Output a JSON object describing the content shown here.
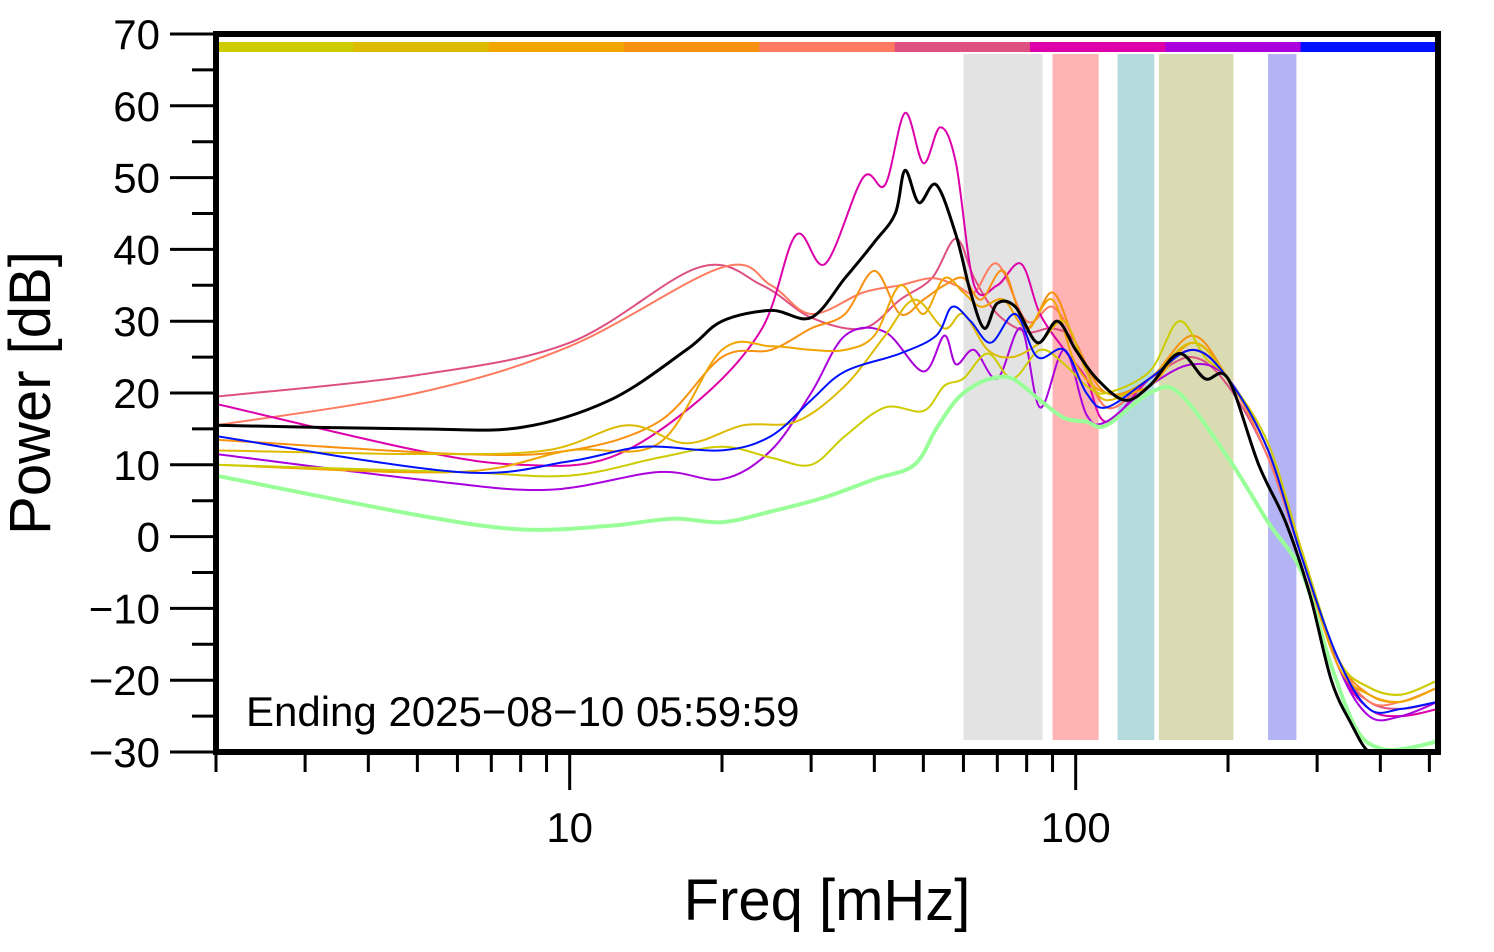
{
  "chart_data": {
    "type": "line",
    "xscale": "log",
    "xlim": [
      2,
      520
    ],
    "ylim": [
      -30,
      70
    ],
    "xlabel": "Freq [mHz]",
    "ylabel": "Power [dB]",
    "annotation": "Ending 2025−08−10 05:59:59",
    "x_ticks": [
      {
        "value": 10,
        "label": "10"
      },
      {
        "value": 100,
        "label": "100"
      }
    ],
    "y_ticks": [
      {
        "value": 70,
        "label": "70"
      },
      {
        "value": 60,
        "label": "60"
      },
      {
        "value": 50,
        "label": "50"
      },
      {
        "value": 40,
        "label": "40"
      },
      {
        "value": 30,
        "label": "30"
      },
      {
        "value": 20,
        "label": "20"
      },
      {
        "value": 10,
        "label": "10"
      },
      {
        "value": 0,
        "label": "0"
      },
      {
        "value": -10,
        "label": "−10"
      },
      {
        "value": -20,
        "label": "−20"
      },
      {
        "value": -30,
        "label": "−30"
      }
    ],
    "color_bar": [
      "#cccc00",
      "#ddbb00",
      "#f0a500",
      "#f89010",
      "#ff7a60",
      "#dd5080",
      "#dd00aa",
      "#aa00dd",
      "#0011ff"
    ],
    "bands": [
      {
        "x0": 60,
        "x1": 86,
        "color": "#e3e3e3"
      },
      {
        "x0": 90,
        "x1": 111,
        "color": "#ffb3b3"
      },
      {
        "x0": 121,
        "x1": 143,
        "color": "#b3dbdd"
      },
      {
        "x0": 146,
        "x1": 205,
        "color": "#dbdbb3"
      },
      {
        "x0": 240,
        "x1": 273,
        "color": "#b3b3f5"
      }
    ],
    "series": [
      {
        "color": "#dd5080",
        "width": 2,
        "x": [
          2,
          5,
          10,
          18,
          24,
          30,
          38,
          45,
          52,
          58,
          63,
          70,
          80,
          90,
          100,
          115,
          140,
          170,
          200,
          240,
          280,
          330,
          380,
          440,
          520
        ],
        "y": [
          19.5,
          22.5,
          27,
          37.5,
          35,
          30.5,
          29,
          33,
          36,
          41.5,
          36,
          31,
          28.5,
          29,
          27,
          18,
          22,
          25,
          21,
          11,
          -3,
          -18,
          -23,
          -24,
          -23
        ]
      },
      {
        "color": "#ff7a60",
        "width": 2,
        "x": [
          2,
          5,
          10,
          20,
          25,
          30,
          38,
          45,
          52,
          58,
          63,
          70,
          80,
          90,
          100,
          115,
          140,
          170,
          200,
          240,
          280,
          330,
          380,
          440,
          520
        ],
        "y": [
          15.5,
          20,
          26.5,
          37.5,
          35,
          31,
          34,
          35,
          36,
          35,
          34,
          38,
          30,
          32,
          27,
          18,
          22,
          26,
          22,
          11,
          -3,
          -17,
          -23,
          -23,
          -21
        ]
      },
      {
        "color": "#dd00aa",
        "width": 2,
        "x": [
          2,
          5,
          8,
          12,
          18,
          24,
          28,
          32,
          38,
          42,
          46,
          50,
          54,
          58,
          63,
          70,
          78,
          85,
          95,
          105,
          115,
          140,
          170,
          200,
          240,
          280,
          330,
          380,
          440,
          520
        ],
        "y": [
          18.5,
          12,
          10,
          11,
          19,
          29,
          42,
          38,
          50,
          49,
          59,
          52,
          57,
          52,
          35,
          35,
          38,
          31,
          26,
          22,
          16,
          22,
          26,
          22,
          12,
          -3,
          -18,
          -24,
          -25,
          -24
        ]
      },
      {
        "color": "#aa00dd",
        "width": 2,
        "x": [
          2,
          5,
          9,
          15,
          20,
          25,
          30,
          35,
          42,
          50,
          55,
          58,
          63,
          70,
          78,
          85,
          95,
          105,
          115,
          140,
          170,
          200,
          240,
          280,
          330,
          380,
          440,
          520
        ],
        "y": [
          11.5,
          8,
          6.5,
          9,
          8,
          12,
          20,
          28,
          28.5,
          23,
          28,
          24,
          26,
          22,
          29,
          18,
          26,
          17,
          16,
          21,
          24,
          22,
          12,
          -3,
          -18,
          -25,
          -25,
          -23
        ]
      },
      {
        "color": "#f89010",
        "width": 2,
        "x": [
          2,
          6,
          10,
          15,
          20,
          25,
          30,
          35,
          40,
          45,
          50,
          55,
          60,
          65,
          72,
          80,
          90,
          100,
          115,
          140,
          170,
          200,
          240,
          280,
          330,
          380,
          440,
          520
        ],
        "y": [
          13.5,
          11.5,
          12,
          16,
          25,
          26,
          29,
          31,
          37,
          31,
          33,
          35,
          36,
          33,
          37,
          29,
          34,
          27,
          20,
          22,
          28,
          22,
          12,
          -3,
          -17,
          -22,
          -23,
          -21
        ]
      },
      {
        "color": "#f0a500",
        "width": 2,
        "x": [
          2,
          6,
          10,
          15,
          20,
          25,
          30,
          35,
          40,
          45,
          50,
          55,
          60,
          65,
          72,
          80,
          90,
          100,
          115,
          140,
          170,
          200,
          240,
          280,
          330,
          380,
          440,
          520
        ],
        "y": [
          10,
          9,
          12,
          13,
          26,
          26.5,
          26,
          26,
          28,
          35,
          31,
          36,
          34,
          32,
          33,
          29,
          33,
          24,
          20,
          21,
          27,
          22,
          12,
          -3,
          -18,
          -22,
          -23,
          -21
        ]
      },
      {
        "color": "#ddbb00",
        "width": 2,
        "x": [
          2,
          5,
          9,
          13,
          17,
          22,
          28,
          35,
          42,
          48,
          55,
          60,
          67,
          75,
          85,
          95,
          105,
          115,
          140,
          170,
          200,
          240,
          280,
          330,
          380,
          440,
          520
        ],
        "y": [
          12,
          11.5,
          12,
          15.5,
          13,
          15.5,
          16,
          21,
          28,
          33,
          29,
          31,
          26,
          25,
          27,
          30,
          23,
          19,
          22,
          27,
          22,
          12,
          -3,
          -17,
          -21,
          -22,
          -20
        ]
      },
      {
        "color": "#cccc00",
        "width": 2,
        "x": [
          2,
          6,
          10,
          15,
          20,
          25,
          30,
          35,
          42,
          50,
          55,
          60,
          67,
          75,
          85,
          95,
          105,
          115,
          140,
          160,
          180,
          200,
          240,
          280,
          330,
          380,
          440,
          520
        ],
        "y": [
          10,
          9,
          8.5,
          11,
          12.5,
          11,
          10,
          14,
          18,
          17.5,
          21,
          22,
          25.5,
          22,
          26,
          24,
          21,
          20,
          23,
          30,
          25,
          22,
          13,
          -2,
          -17,
          -21,
          -22,
          -20
        ]
      },
      {
        "color": "#0011ff",
        "width": 2,
        "x": [
          2,
          6,
          10,
          14,
          20,
          25,
          30,
          35,
          45,
          53,
          57,
          62,
          68,
          76,
          84,
          95,
          105,
          115,
          140,
          170,
          200,
          240,
          280,
          330,
          380,
          440,
          520
        ],
        "y": [
          14,
          9,
          10.5,
          12.5,
          12,
          14,
          19,
          23,
          25.5,
          28,
          32,
          30,
          27,
          31,
          25,
          26,
          20,
          18,
          22,
          26,
          22,
          12,
          -3,
          -17,
          -24,
          -24,
          -23
        ]
      },
      {
        "color": "#99ff99",
        "width": 4,
        "x": [
          2,
          5,
          8,
          12,
          16,
          20,
          25,
          32,
          40,
          48,
          53,
          58,
          63,
          68,
          75,
          85,
          95,
          105,
          115,
          140,
          160,
          200,
          240,
          280,
          320,
          360,
          400,
          450,
          520
        ],
        "y": [
          8.5,
          3,
          1,
          1.5,
          2.5,
          2,
          3.5,
          5.5,
          8,
          10,
          15,
          19,
          21,
          22,
          22,
          19,
          16.5,
          16,
          15.5,
          20,
          20,
          11,
          2,
          -5,
          -18,
          -27,
          -29.5,
          -29.5,
          -28.5
        ]
      },
      {
        "color": "#000000",
        "width": 3,
        "x": [
          2,
          5,
          8,
          12,
          17,
          20,
          25,
          30,
          35,
          40,
          44,
          46,
          49,
          53,
          58,
          62,
          66,
          70,
          76,
          84,
          92,
          100,
          110,
          125,
          140,
          160,
          180,
          200,
          230,
          260,
          290,
          320,
          350,
          380,
          420,
          520
        ],
        "y": [
          15.5,
          15,
          15.2,
          19,
          26,
          30,
          31.5,
          30.5,
          36,
          41,
          45,
          51,
          46.5,
          49,
          42,
          34,
          29,
          32.5,
          32,
          27,
          30,
          26,
          22,
          19,
          21,
          25.5,
          22,
          22,
          10,
          2,
          -8,
          -20,
          -26,
          -30,
          -30,
          -30
        ]
      }
    ]
  }
}
